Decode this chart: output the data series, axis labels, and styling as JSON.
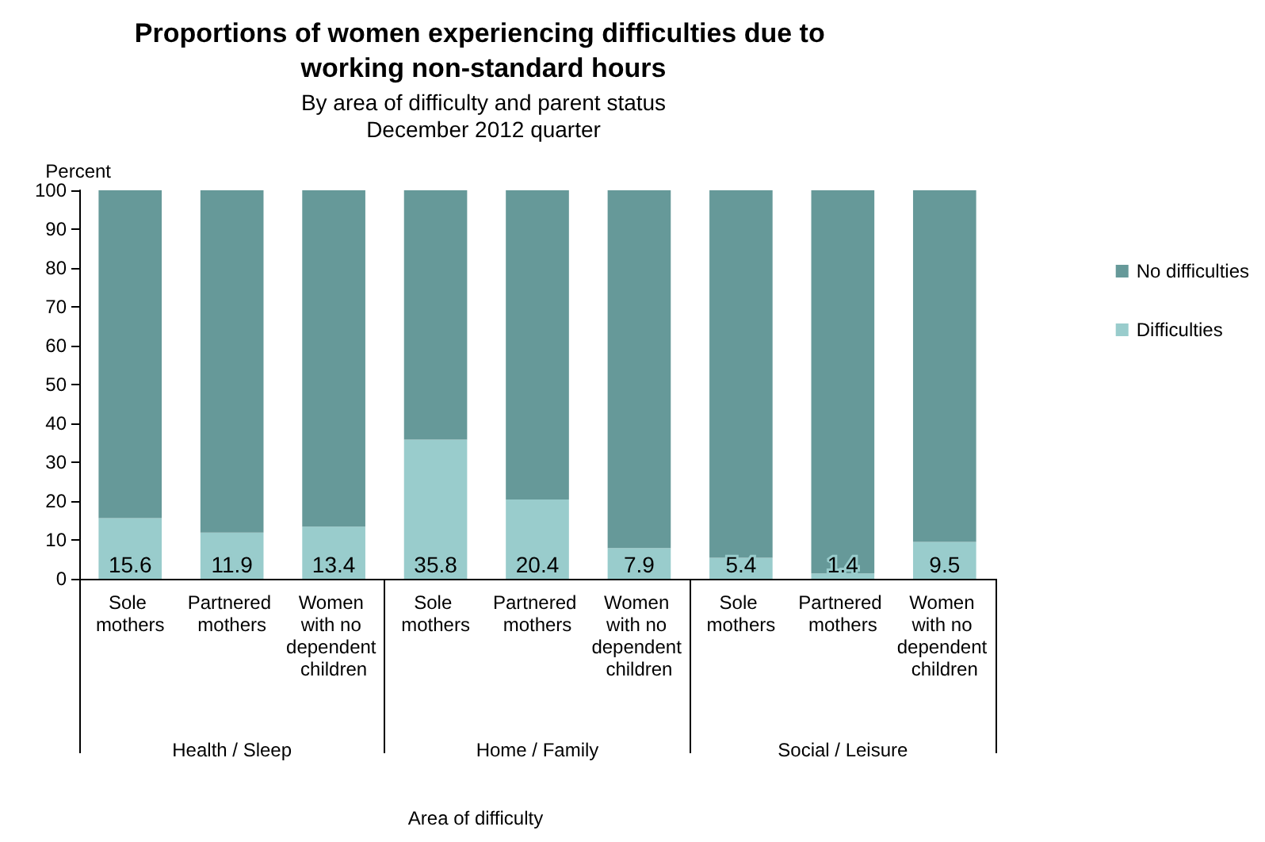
{
  "chart_data": {
    "type": "bar",
    "stacked": true,
    "title": "Proportions of women experiencing difficulties due to working non-standard hours",
    "subtitle": "By area of difficulty and parent status\nDecember 2012 quarter",
    "ylabel": "Percent",
    "categories": [
      "Sole mothers",
      "Partnered mothers",
      "Women with no dependent children",
      "Sole mothers",
      "Partnered mothers",
      "Women with no dependent children",
      "Sole mothers",
      "Partnered mothers",
      "Women with no dependent children"
    ],
    "series": [
      {
        "name": "Difficulties",
        "color": "#99cccc",
        "values": [
          15.6,
          11.9,
          13.4,
          35.8,
          20.4,
          7.9,
          5.4,
          1.4,
          9.5
        ],
        "value_labels": [
          "15.6",
          "11.9",
          "13.4",
          "35.8",
          "20.4",
          "7.9",
          "5.4",
          "1.4",
          "9.5"
        ]
      },
      {
        "name": "No difficulties",
        "color": "#669999",
        "values": [
          84.4,
          88.1,
          86.6,
          64.2,
          79.6,
          92.1,
          94.6,
          98.6,
          90.5
        ]
      }
    ],
    "annotations": [
      "Health / Sleep",
      "Home / Family",
      "Social / Leisure",
      "Area of difficulty"
    ],
    "ylim": [
      0,
      100
    ],
    "yticks": [
      0,
      10,
      20,
      30,
      40,
      50,
      60,
      70,
      80,
      90,
      100
    ],
    "grid": false,
    "legend": "right"
  }
}
